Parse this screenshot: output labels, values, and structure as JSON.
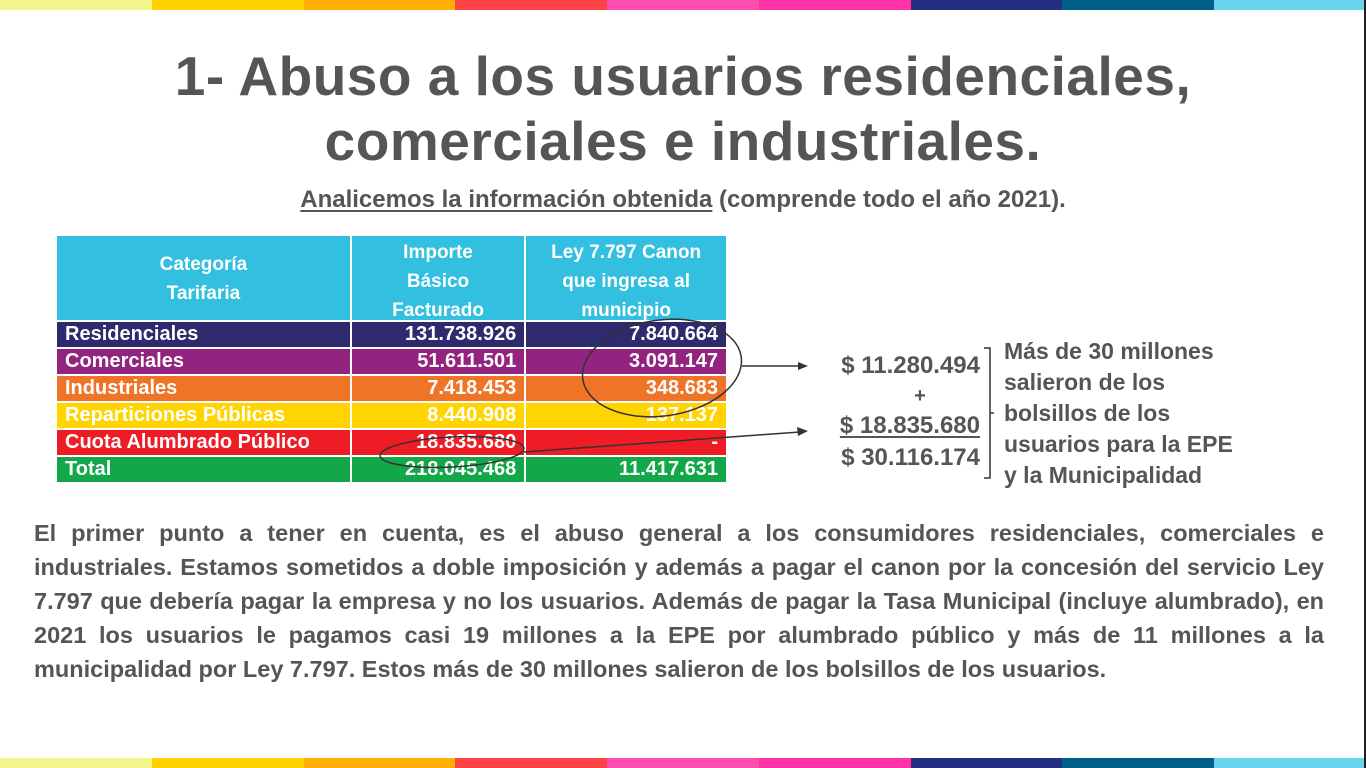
{
  "stripe_colors": [
    "#f2f58a",
    "#ffd100",
    "#ffb000",
    "#ff4248",
    "#ff4fae",
    "#ff32a8",
    "#232f80",
    "#005f86",
    "#66d4ef"
  ],
  "title": {
    "line1": "1- Abuso a los usuarios residenciales,",
    "line2": "comerciales e industriales."
  },
  "subtitle": {
    "underlined": "Analicemos la información obtenida",
    "rest": " (comprende todo el año 2021)."
  },
  "table": {
    "headers": [
      "Categoría Tarifaria",
      "Importe Básico Facturado",
      "Ley 7.797 Canon que ingresa al municipio"
    ],
    "rows": [
      {
        "categoria": "Residenciales",
        "importe": "131.738.926",
        "canon": "7.840.664",
        "color": "#2e2a6e",
        "text_color": "#ffffff"
      },
      {
        "categoria": "Comerciales",
        "importe": "51.611.501",
        "canon": "3.091.147",
        "color": "#92237f",
        "text_color": "#ffffff"
      },
      {
        "categoria": "Industriales",
        "importe": "7.418.453",
        "canon": "348.683",
        "color": "#f07427",
        "text_color": "#ffffff"
      },
      {
        "categoria": "Reparticiones Públicas",
        "importe": "8.440.908",
        "canon": "137.137",
        "color": "#ffd400",
        "text_color": "#ffffff"
      },
      {
        "categoria": "Cuota Alumbrado Público",
        "importe": "18.835.680",
        "canon": "-",
        "color": "#ee1c25",
        "text_color": "#ffffff"
      },
      {
        "categoria": "Total",
        "importe": "218.045.468",
        "canon": "11.417.631",
        "color": "#12a84a",
        "text_color": "#ffffff"
      }
    ]
  },
  "sum": {
    "a": "$ 11.280.494",
    "plus": "+",
    "b": "$ 18.835.680",
    "total": "$ 30.116.174"
  },
  "note": {
    "lines": [
      "Más de 30 millones",
      "salieron de los",
      "bolsillos de los",
      "usuarios para la EPE",
      "y la Municipalidad"
    ]
  },
  "paragraph": "El primer punto a tener en cuenta, es el abuso general a los consumidores residenciales, comerciales e industriales. Estamos sometidos a doble imposición y además a pagar el canon por la concesión del servicio Ley 7.797 que debería pagar la empresa y no los usuarios. Además de pagar la Tasa Municipal (incluye alumbrado), en 2021 los usuarios le pagamos casi 19 millones a la EPE por alumbrado público y más de 11 millones a la municipalidad por Ley 7.797. Estos más de 30 millones salieron de los bolsillos de los usuarios."
}
